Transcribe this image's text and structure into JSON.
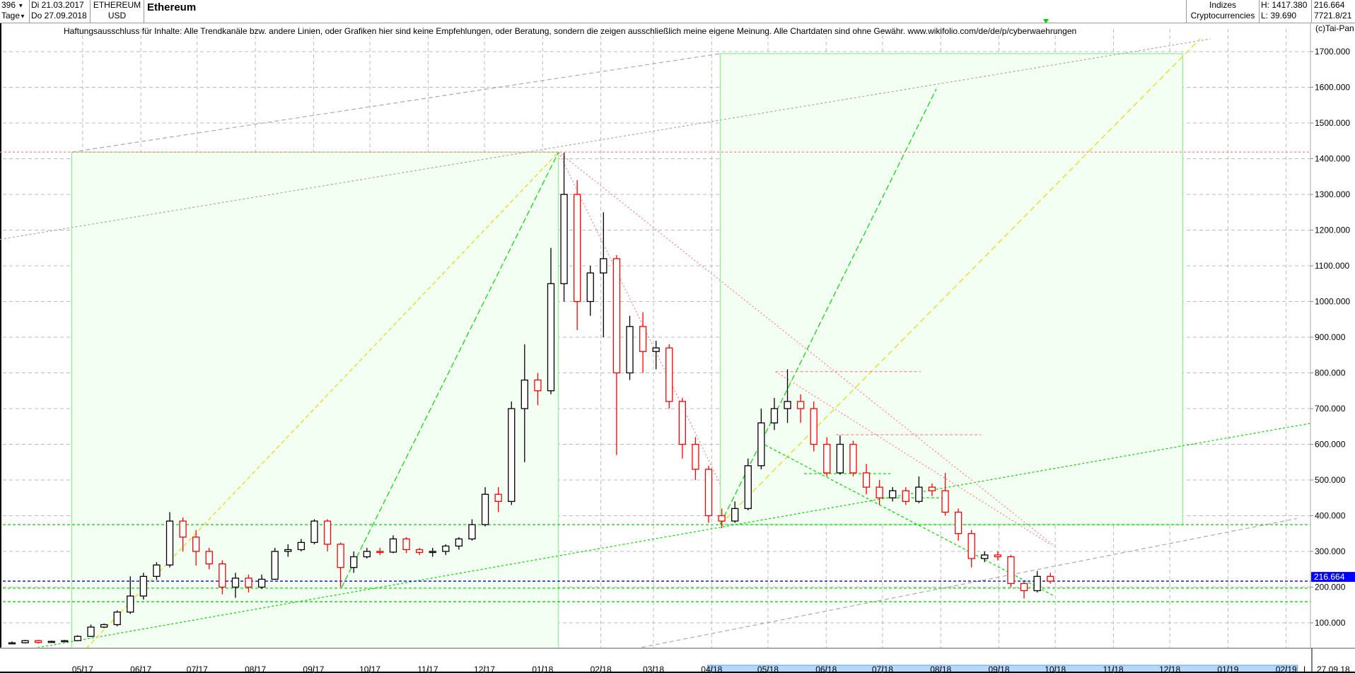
{
  "header": {
    "period_count": "396",
    "period_unit": "Tage",
    "date_from": "Di 21.03.2017",
    "date_to": "Do 27.09.2018",
    "symbol": "ETHEREUM",
    "currency": "USD",
    "title": "Ethereum",
    "group": "Indizes",
    "subgroup": "Cryptocurrencies",
    "high": "H: 1417.380",
    "low": "L: 39.690",
    "last": "216.664",
    "extra": "7721.8/21"
  },
  "disclaimer": "Haftungsausschluss für Inhalte: Alle Trendkanäle bzw. andere Linien, oder Grafiken hier sind keine Empfehlungen, oder Beratung, sondern die zeigen ausschließlich meine eigene Meinung. Alle Chartdaten sind ohne Gewähr.  www.wikifolio.com/de/de/p/cyberwaehrungen",
  "copyright": "(c)Tai-Pan",
  "colors": {
    "up": "#000000",
    "down": "#ff0000",
    "last_price": "#0000ff",
    "box_fill": "#f2fff2",
    "box_stroke": "#90ee90",
    "grid": "#bbbbbb",
    "axis_highlight": "#b4d8ff"
  },
  "chart_data": {
    "type": "candlestick",
    "title": "Ethereum",
    "ylim": [
      0,
      1750
    ],
    "grid": true,
    "y_ticks": [
      "100.000",
      "200.000",
      "300.000",
      "400.000",
      "500.000",
      "600.000",
      "700.000",
      "800.000",
      "900.000",
      "1000.000",
      "1100.000",
      "1200.000",
      "1300.000",
      "1400.000",
      "1500.000",
      "1600.000",
      "1700.000"
    ],
    "x_ticks": [
      "05/17",
      "06/17",
      "07/17",
      "08/17",
      "09/17",
      "10/17",
      "11/17",
      "12/17",
      "01/18",
      "02/18",
      "03/18",
      "04/18",
      "05/18",
      "06/18",
      "07/18",
      "08/18",
      "09/18",
      "10/18",
      "11/18",
      "12/18",
      "01/19",
      "02/19"
    ],
    "x_tick_dates": [
      "2017-05-01",
      "2017-06-01",
      "2017-07-01",
      "2017-08-01",
      "2017-09-01",
      "2017-10-01",
      "2017-11-01",
      "2017-12-01",
      "2018-01-01",
      "2018-02-01",
      "2018-03-01",
      "2018-04-01",
      "2018-05-01",
      "2018-06-01",
      "2018-07-01",
      "2018-08-01",
      "2018-09-01",
      "2018-10-01",
      "2018-11-01",
      "2018-12-01",
      "2019-01-01",
      "2019-02-01"
    ],
    "axis_end_label": "L",
    "axis_end_date": "27.09.18",
    "last_price_label": "216.664",
    "last_price": 216.664,
    "horizontal_levels": [
      1417.38,
      375,
      197,
      159
    ],
    "ohlc_columns": [
      "date",
      "open",
      "high",
      "low",
      "close"
    ],
    "ohlc": [
      [
        "2017-03-21",
        42,
        48,
        39.69,
        44
      ],
      [
        "2017-03-28",
        44,
        52,
        42,
        50
      ],
      [
        "2017-04-04",
        50,
        52,
        42,
        45
      ],
      [
        "2017-04-11",
        45,
        50,
        44,
        48
      ],
      [
        "2017-04-18",
        48,
        52,
        46,
        50
      ],
      [
        "2017-04-25",
        50,
        65,
        49,
        62
      ],
      [
        "2017-05-02",
        62,
        95,
        60,
        88
      ],
      [
        "2017-05-09",
        88,
        98,
        85,
        95
      ],
      [
        "2017-05-16",
        95,
        135,
        90,
        130
      ],
      [
        "2017-05-23",
        130,
        230,
        125,
        175
      ],
      [
        "2017-05-30",
        175,
        240,
        165,
        230
      ],
      [
        "2017-06-06",
        230,
        270,
        220,
        262
      ],
      [
        "2017-06-13",
        262,
        410,
        255,
        385
      ],
      [
        "2017-06-20",
        385,
        395,
        300,
        340
      ],
      [
        "2017-06-27",
        340,
        360,
        260,
        300
      ],
      [
        "2017-07-04",
        300,
        310,
        250,
        265
      ],
      [
        "2017-07-11",
        265,
        275,
        180,
        200
      ],
      [
        "2017-07-18",
        200,
        240,
        170,
        225
      ],
      [
        "2017-07-25",
        225,
        235,
        185,
        200
      ],
      [
        "2017-08-01",
        200,
        235,
        195,
        222
      ],
      [
        "2017-08-08",
        222,
        310,
        220,
        300
      ],
      [
        "2017-08-15",
        300,
        320,
        285,
        305
      ],
      [
        "2017-08-22",
        305,
        335,
        300,
        325
      ],
      [
        "2017-08-29",
        325,
        390,
        320,
        385
      ],
      [
        "2017-09-05",
        385,
        390,
        300,
        320
      ],
      [
        "2017-09-12",
        320,
        325,
        200,
        255
      ],
      [
        "2017-09-19",
        255,
        300,
        240,
        285
      ],
      [
        "2017-09-26",
        285,
        310,
        280,
        300
      ],
      [
        "2017-10-03",
        300,
        310,
        290,
        298
      ],
      [
        "2017-10-10",
        298,
        345,
        295,
        335
      ],
      [
        "2017-10-17",
        335,
        340,
        295,
        305
      ],
      [
        "2017-10-24",
        305,
        310,
        290,
        297
      ],
      [
        "2017-10-31",
        297,
        310,
        285,
        300
      ],
      [
        "2017-11-07",
        300,
        320,
        290,
        315
      ],
      [
        "2017-11-14",
        315,
        340,
        305,
        335
      ],
      [
        "2017-11-21",
        335,
        390,
        330,
        375
      ],
      [
        "2017-11-28",
        375,
        480,
        370,
        460
      ],
      [
        "2017-12-05",
        460,
        480,
        410,
        440
      ],
      [
        "2017-12-12",
        440,
        720,
        430,
        700
      ],
      [
        "2017-12-19",
        700,
        880,
        550,
        780
      ],
      [
        "2017-12-26",
        780,
        800,
        710,
        750
      ],
      [
        "2018-01-02",
        750,
        1150,
        740,
        1050
      ],
      [
        "2018-01-09",
        1050,
        1417.38,
        1000,
        1300
      ],
      [
        "2018-01-16",
        1300,
        1340,
        920,
        1000
      ],
      [
        "2018-01-23",
        1000,
        1100,
        960,
        1080
      ],
      [
        "2018-01-30",
        1080,
        1250,
        900,
        1120
      ],
      [
        "2018-02-06",
        1120,
        1130,
        570,
        800
      ],
      [
        "2018-02-13",
        800,
        960,
        780,
        930
      ],
      [
        "2018-02-20",
        930,
        970,
        800,
        860
      ],
      [
        "2018-02-27",
        860,
        890,
        810,
        870
      ],
      [
        "2018-03-06",
        870,
        880,
        700,
        720
      ],
      [
        "2018-03-13",
        720,
        730,
        560,
        600
      ],
      [
        "2018-03-20",
        600,
        620,
        500,
        530
      ],
      [
        "2018-03-27",
        530,
        540,
        380,
        400
      ],
      [
        "2018-04-03",
        400,
        420,
        365,
        385
      ],
      [
        "2018-04-10",
        385,
        440,
        380,
        420
      ],
      [
        "2018-04-17",
        420,
        560,
        415,
        540
      ],
      [
        "2018-04-24",
        540,
        700,
        530,
        660
      ],
      [
        "2018-05-01",
        660,
        730,
        640,
        700
      ],
      [
        "2018-05-08",
        700,
        810,
        660,
        720
      ],
      [
        "2018-05-15",
        720,
        740,
        660,
        700
      ],
      [
        "2018-05-22",
        700,
        720,
        580,
        600
      ],
      [
        "2018-05-29",
        600,
        620,
        510,
        520
      ],
      [
        "2018-06-05",
        520,
        625,
        515,
        600
      ],
      [
        "2018-06-12",
        600,
        610,
        510,
        520
      ],
      [
        "2018-06-19",
        520,
        545,
        460,
        480
      ],
      [
        "2018-06-26",
        480,
        500,
        430,
        450
      ],
      [
        "2018-07-03",
        450,
        480,
        440,
        470
      ],
      [
        "2018-07-10",
        470,
        480,
        430,
        440
      ],
      [
        "2018-07-17",
        440,
        510,
        435,
        480
      ],
      [
        "2018-07-24",
        480,
        490,
        455,
        470
      ],
      [
        "2018-07-31",
        470,
        520,
        400,
        410
      ],
      [
        "2018-08-07",
        410,
        420,
        330,
        350
      ],
      [
        "2018-08-14",
        350,
        360,
        255,
        280
      ],
      [
        "2018-08-21",
        280,
        300,
        270,
        290
      ],
      [
        "2018-08-28",
        290,
        300,
        275,
        285
      ],
      [
        "2018-09-04",
        285,
        290,
        200,
        210
      ],
      [
        "2018-09-11",
        210,
        215,
        168,
        190
      ],
      [
        "2018-09-18",
        190,
        245,
        185,
        230
      ],
      [
        "2018-09-25",
        230,
        240,
        210,
        216.664
      ]
    ]
  }
}
